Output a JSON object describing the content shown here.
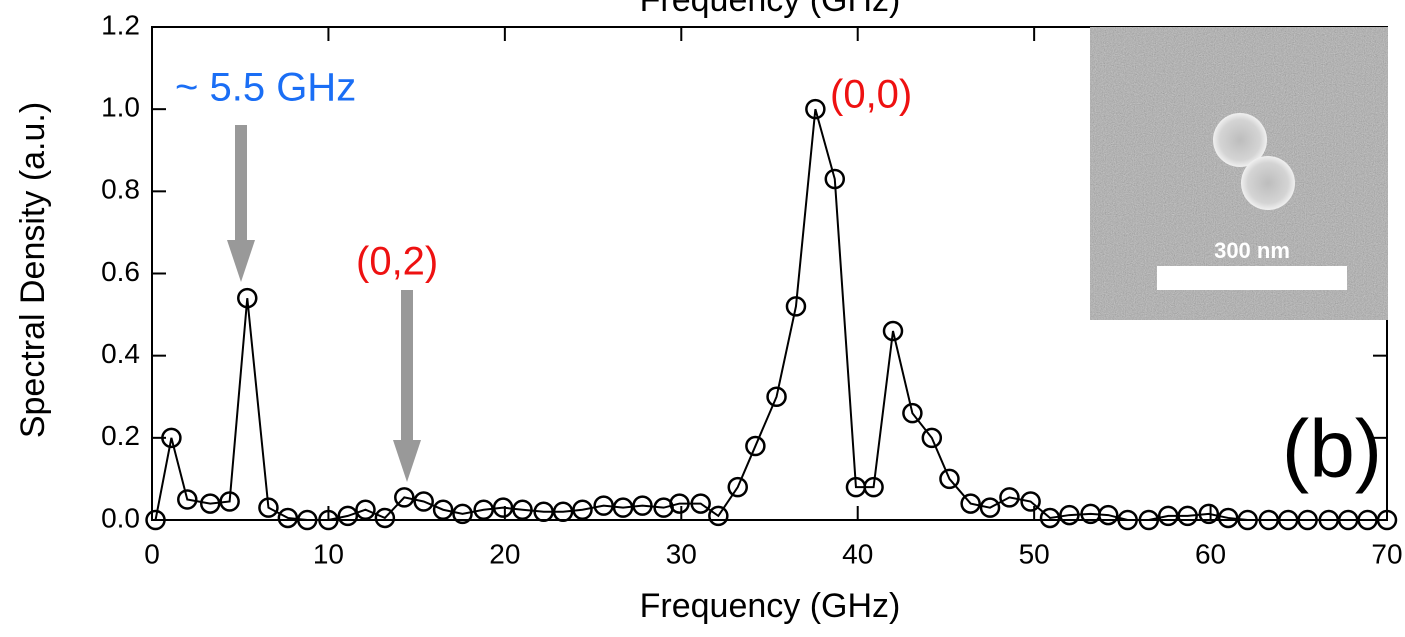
{
  "chart_data": {
    "type": "line",
    "top_axis_label": "Frequency (GHz)",
    "xlabel": "Frequency (GHz)",
    "ylabel": "Spectral Density (a.u.)",
    "xlim": [
      0,
      70
    ],
    "xticks": [
      0,
      10,
      20,
      30,
      40,
      50,
      60,
      70
    ],
    "ylim": [
      0,
      1.2
    ],
    "yticks": [
      {
        "value": 0,
        "label": "0.0"
      },
      {
        "value": 0.2,
        "label": "0.2"
      },
      {
        "value": 0.4,
        "label": "0.4"
      },
      {
        "value": 0.6,
        "label": "0.6"
      },
      {
        "value": 0.8,
        "label": "0.8"
      },
      {
        "value": 1.0,
        "label": "1.0"
      },
      {
        "value": 1.2,
        "label": "1.2"
      }
    ],
    "series": [
      {
        "color": "#000000",
        "x": [
          0.2,
          1.1,
          2.0,
          3.3,
          4.4,
          5.4,
          6.6,
          7.7,
          8.8,
          10.0,
          11.1,
          12.1,
          13.2,
          14.3,
          15.4,
          16.5,
          17.6,
          18.8,
          19.9,
          21.0,
          22.2,
          23.3,
          24.4,
          25.6,
          26.7,
          27.8,
          29.0,
          29.9,
          31.1,
          32.1,
          33.2,
          34.2,
          35.4,
          36.5,
          37.6,
          38.7,
          39.9,
          40.9,
          42.0,
          43.1,
          44.2,
          45.2,
          46.4,
          47.5,
          48.6,
          49.8,
          50.9,
          52.0,
          53.2,
          54.2,
          55.3,
          56.5,
          57.6,
          58.7,
          59.9,
          61.0,
          62.1,
          63.3,
          64.4,
          65.5,
          66.7,
          67.8,
          68.9,
          70.0
        ],
        "values": [
          0.0,
          0.2,
          0.05,
          0.04,
          0.045,
          0.54,
          0.03,
          0.005,
          0.0,
          0.0,
          0.01,
          0.025,
          0.005,
          0.055,
          0.045,
          0.025,
          0.015,
          0.025,
          0.03,
          0.025,
          0.02,
          0.02,
          0.025,
          0.035,
          0.03,
          0.035,
          0.03,
          0.04,
          0.04,
          0.01,
          0.08,
          0.18,
          0.3,
          0.52,
          1.0,
          0.83,
          0.08,
          0.08,
          0.46,
          0.26,
          0.2,
          0.1,
          0.04,
          0.03,
          0.055,
          0.045,
          0.005,
          0.012,
          0.015,
          0.012,
          0.0,
          0.0,
          0.01,
          0.01,
          0.015,
          0.005,
          0.0,
          0.0,
          0.0,
          0.0,
          0.0,
          0.0,
          0.0,
          0.0
        ]
      }
    ],
    "annotations": [
      {
        "text": "~ 5.5 GHz",
        "color": "#1a6ef5"
      },
      {
        "text": "(0,0)",
        "color": "#ee1111"
      },
      {
        "text": "(0,2)",
        "color": "#ee1111"
      },
      {
        "text": "(b)",
        "color": "#000000"
      }
    ],
    "inset_scale_label": "300 nm"
  }
}
